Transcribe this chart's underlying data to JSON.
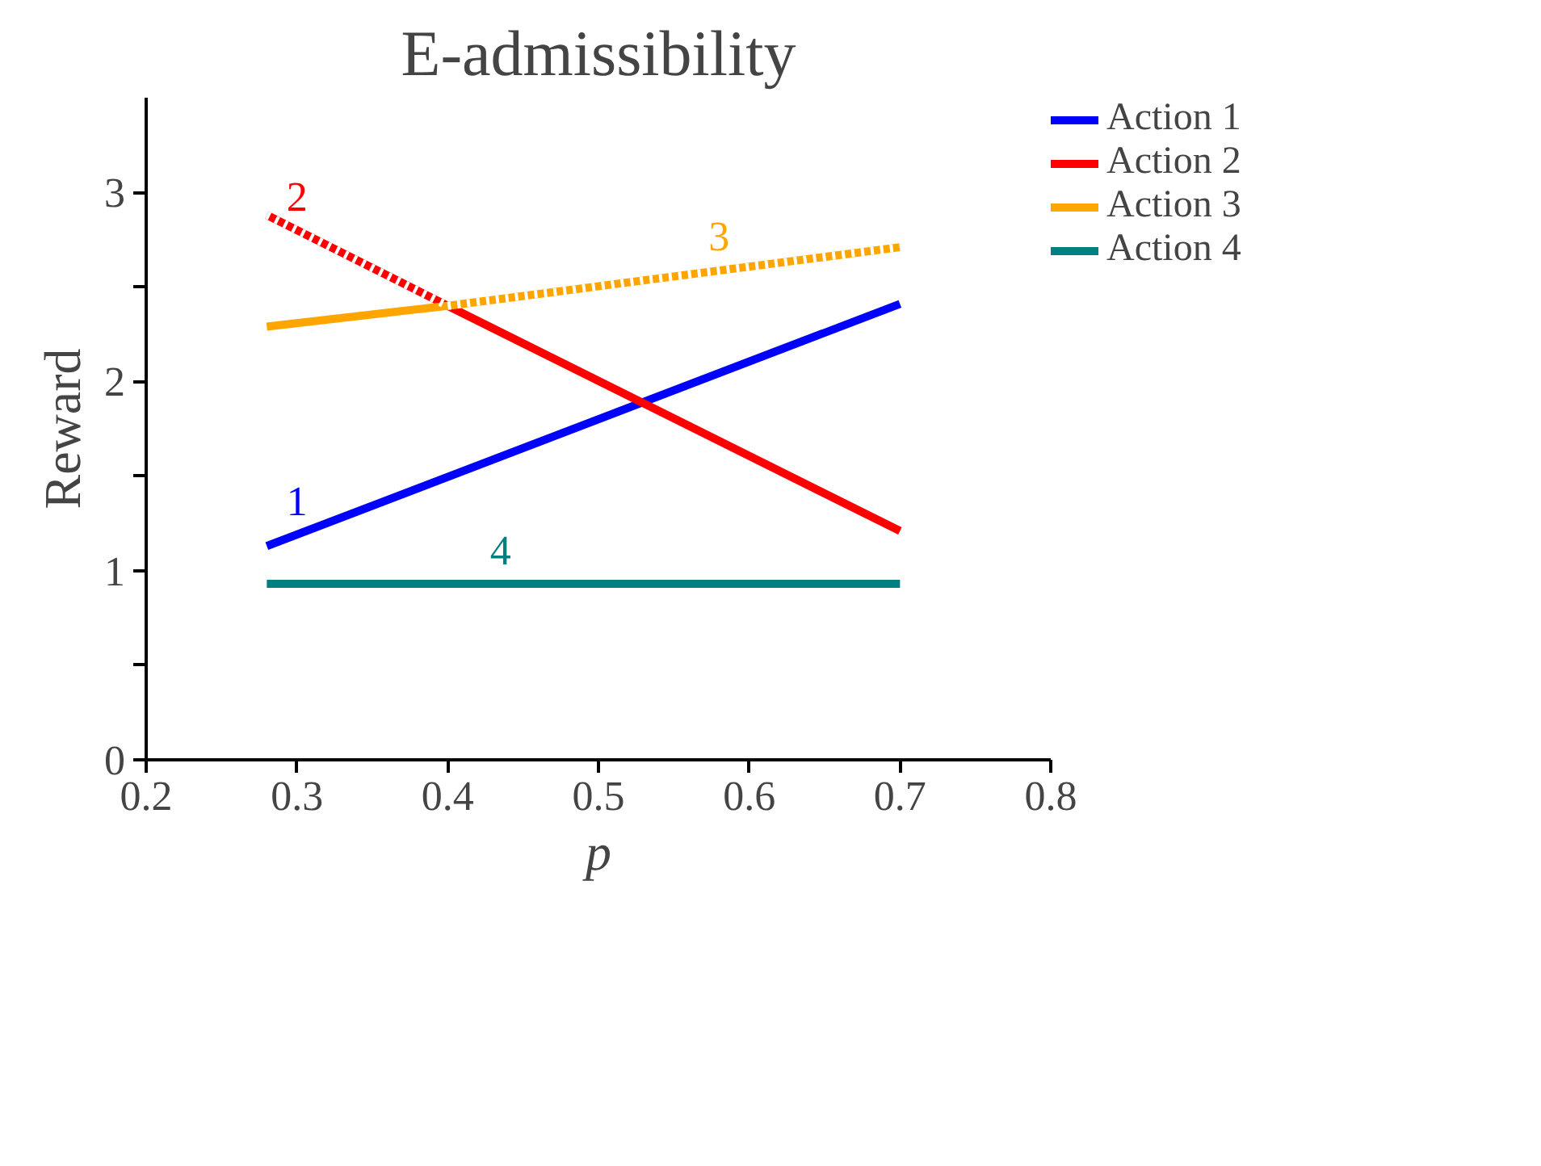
{
  "chart_data": {
    "type": "line",
    "title": "E-admissibility",
    "xlabel": "p",
    "ylabel": "Reward",
    "xlim": [
      0.2,
      0.8
    ],
    "xticks": [
      0.2,
      0.3,
      0.4,
      0.5,
      0.6,
      0.7,
      0.8
    ],
    "ylim": [
      0,
      3.5
    ],
    "yticks": [
      0,
      {
        "value": 0.5,
        "label": null
      },
      1,
      {
        "value": 1.5,
        "label": null
      },
      2,
      {
        "value": 2.5,
        "label": null
      },
      3
    ],
    "grid": false,
    "legend": "right",
    "marker": "none",
    "series": [
      {
        "name": "Action 1",
        "color": "#0000ff",
        "x": [
          0.28,
          0.7
        ],
        "values": [
          1.13,
          2.41
        ]
      },
      {
        "name": "Action 2",
        "color": "#ff0000",
        "x": [
          0.28,
          0.4,
          0.7
        ],
        "values": [
          2.88,
          2.4,
          1.21
        ]
      },
      {
        "name": "Action 3",
        "color": "#ffa500",
        "x": [
          0.28,
          0.4,
          0.7
        ],
        "values": [
          2.29,
          2.4,
          2.71
        ]
      },
      {
        "name": "Action 4",
        "color": "#008080",
        "x": [
          0.28,
          0.7
        ],
        "values": [
          0.93,
          0.93
        ]
      },
      {
        "color": "#ffffff",
        "line_style": "dotted",
        "x": [
          0.28,
          0.4
        ],
        "values": [
          2.88,
          2.4
        ]
      },
      {
        "color": "#ffffff",
        "line_style": "dotted",
        "x": [
          0.4,
          0.7
        ],
        "values": [
          2.4,
          2.71
        ]
      }
    ],
    "annotations": [
      {
        "text": "1",
        "x": 0.3,
        "y": 1.19
      },
      {
        "text": "2",
        "x": 0.3,
        "y": 2.8
      },
      {
        "text": "3",
        "x": 0.58,
        "y": 2.59
      },
      {
        "text": "4",
        "x": 0.435,
        "y": 0.93
      }
    ]
  }
}
